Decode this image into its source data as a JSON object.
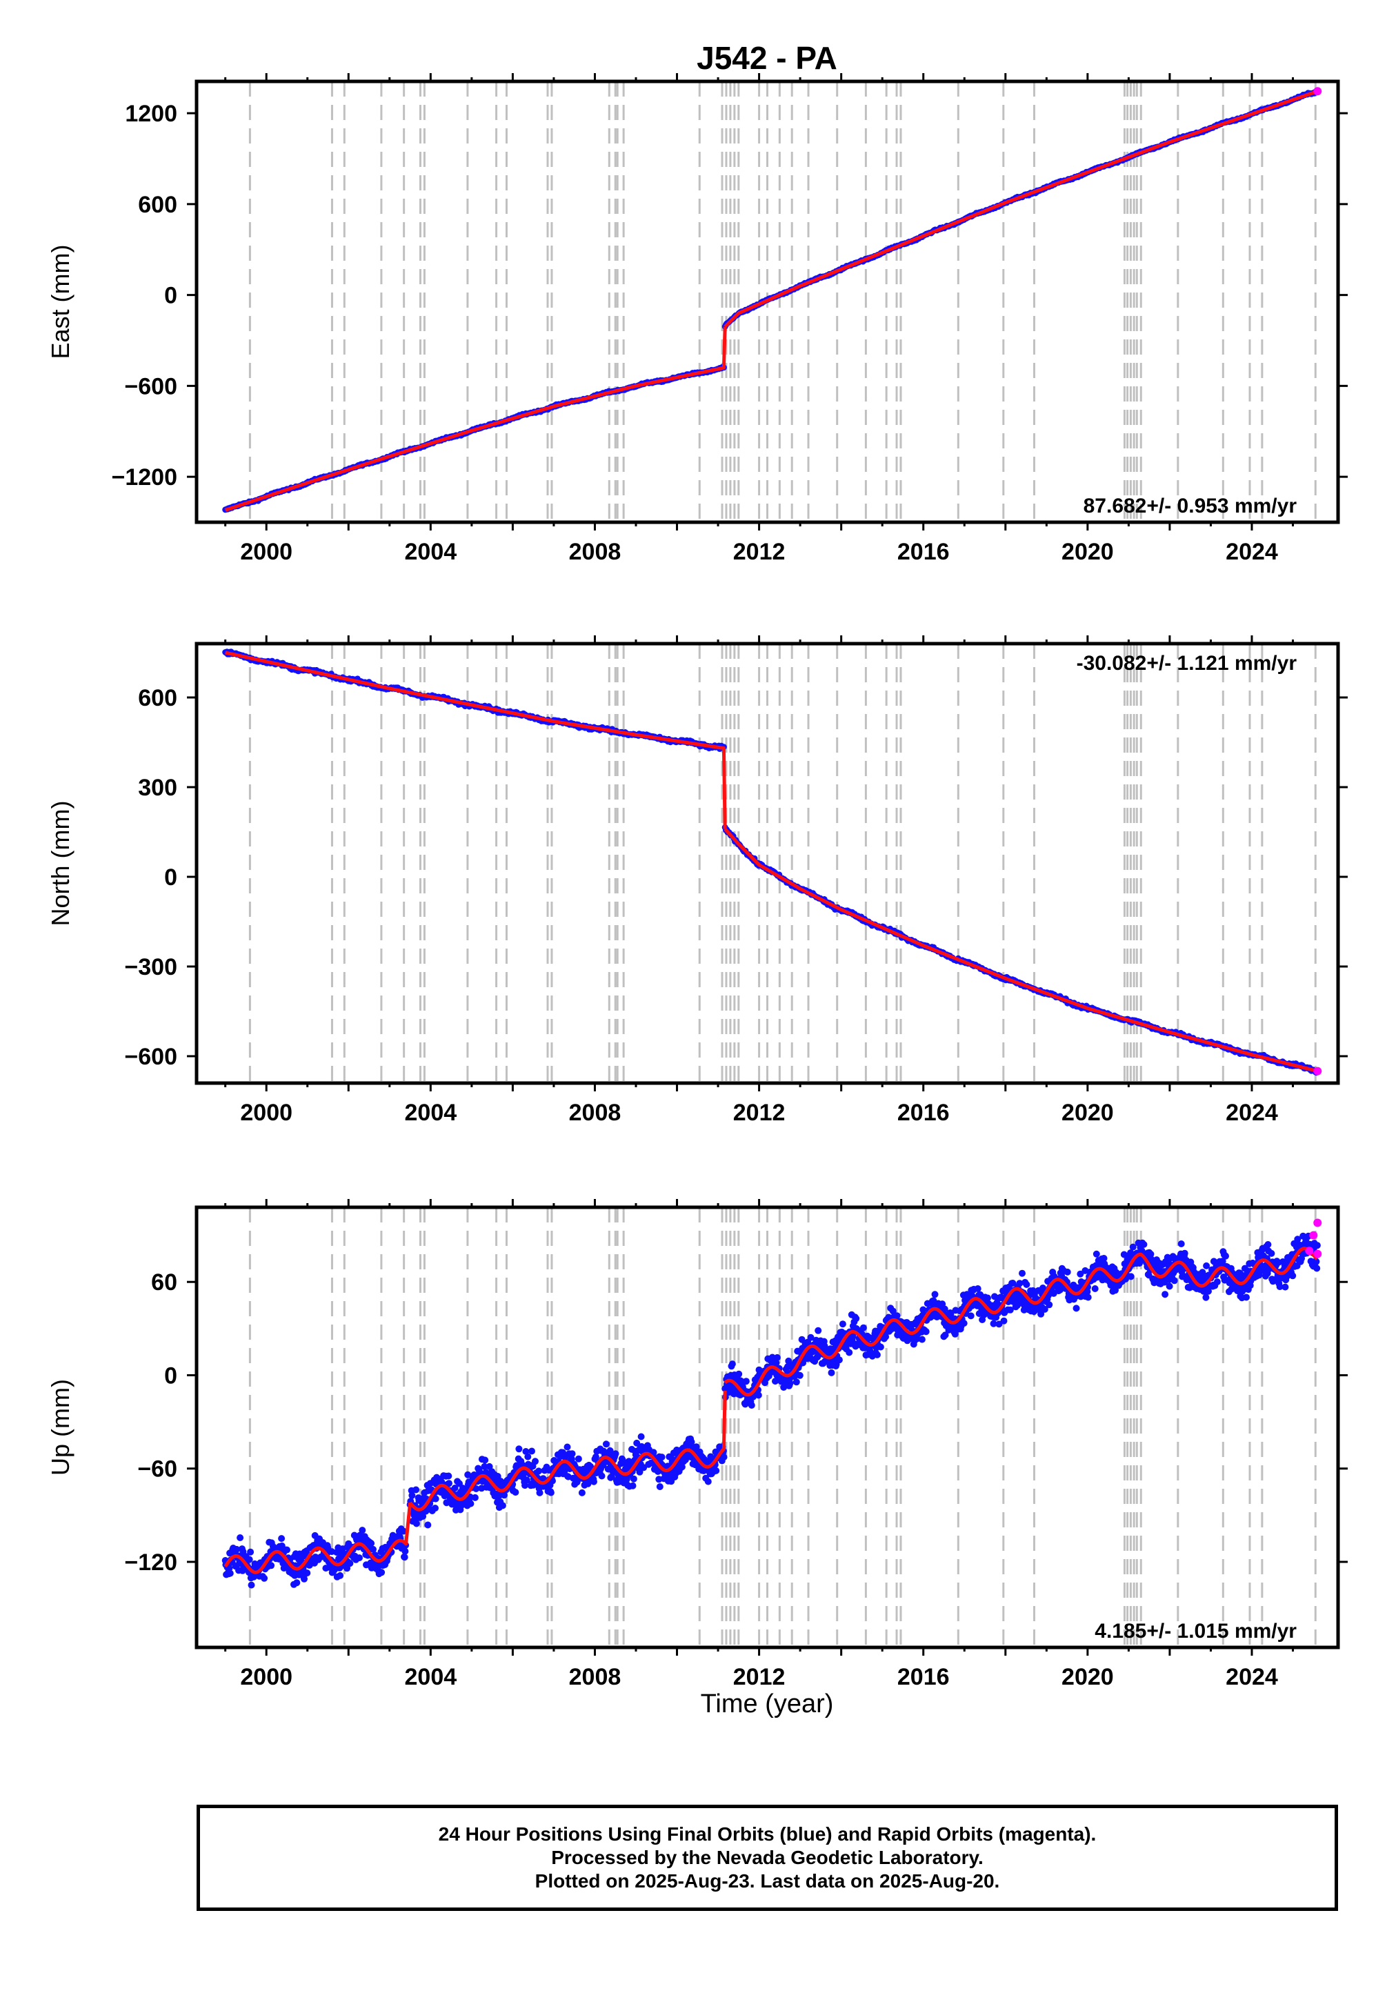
{
  "title": "J542 - PA",
  "x_axis_label": "Time (year)",
  "colors": {
    "final": "#1010ff",
    "rapid": "#ff00ff",
    "model": "#ff1010",
    "event": "#c0c0c0"
  },
  "footer": {
    "line1": "24 Hour Positions Using Final Orbits (blue) and Rapid Orbits (magenta).",
    "line2": "Processed by the Nevada Geodetic Laboratory.",
    "line3": "Plotted on 2025-Aug-23. Last data on 2025-Aug-20."
  },
  "chart_data": [
    {
      "type": "scatter",
      "title": "J542 - PA",
      "ylabel": "East (mm)",
      "xlim": [
        1998.3,
        2026.1
      ],
      "ylim": [
        -1500,
        1410
      ],
      "xticks": [
        "2000",
        "2004",
        "2008",
        "2012",
        "2016",
        "2020",
        "2024"
      ],
      "yticks": [
        "-1200",
        "-600",
        "0",
        "600",
        "1200"
      ],
      "rate_label": "87.682+/- 0.953 mm/yr",
      "rate_position": "bottom-right",
      "series": [
        {
          "x": [
            1999.0,
            2001.0,
            2003.0,
            2005.0,
            2007.0,
            2009.0,
            2011.15
          ],
          "y": [
            -1420,
            -1240,
            -1065,
            -895,
            -735,
            -600,
            -480
          ]
        },
        {
          "x": [
            2011.17,
            2011.5,
            2012.0,
            2013.0,
            2014.0,
            2016.0,
            2018.0,
            2020.0,
            2022.0,
            2024.0,
            2025.6
          ],
          "y": [
            -210,
            -120,
            -60,
            60,
            170,
            390,
            610,
            810,
            1010,
            1195,
            1345
          ]
        }
      ]
    },
    {
      "type": "scatter",
      "ylabel": "North (mm)",
      "xlim": [
        1998.3,
        2026.1
      ],
      "ylim": [
        -690,
        780
      ],
      "xticks": [
        "2000",
        "2004",
        "2008",
        "2012",
        "2016",
        "2020",
        "2024"
      ],
      "yticks": [
        "-600",
        "-300",
        "0",
        "300",
        "600"
      ],
      "rate_label": "-30.082+/- 1.121 mm/yr",
      "rate_position": "top-right",
      "series": [
        {
          "x": [
            1999.0,
            2001.0,
            2003.0,
            2005.0,
            2007.0,
            2009.0,
            2011.15
          ],
          "y": [
            750,
            690,
            630,
            575,
            520,
            475,
            430
          ]
        },
        {
          "x": [
            2011.17,
            2011.5,
            2012.0,
            2013.0,
            2014.0,
            2016.0,
            2018.0,
            2020.0,
            2022.0,
            2024.0,
            2025.6
          ],
          "y": [
            160,
            110,
            40,
            -40,
            -110,
            -230,
            -340,
            -440,
            -520,
            -595,
            -650
          ]
        }
      ]
    },
    {
      "type": "scatter",
      "ylabel": "Up (mm)",
      "xlim": [
        1998.3,
        2026.1
      ],
      "ylim": [
        -175,
        108
      ],
      "xticks": [
        "2000",
        "2004",
        "2008",
        "2012",
        "2016",
        "2020",
        "2024"
      ],
      "yticks": [
        "-120",
        "-60",
        "0",
        "60"
      ],
      "rate_label": "4.185+/- 1.015 mm/yr",
      "rate_position": "bottom-right",
      "series": [
        {
          "x": [
            1999.0,
            2000.0,
            2001.0,
            2002.0,
            2003.4
          ],
          "y": [
            -123,
            -120,
            -118,
            -115,
            -112
          ]
        },
        {
          "x": [
            2003.5,
            2005.0,
            2007.0,
            2009.0,
            2011.15
          ],
          "y": [
            -82,
            -72,
            -62,
            -57,
            -52
          ]
        },
        {
          "x": [
            2011.17,
            2012.0,
            2013.0,
            2014.0,
            2016.0,
            2018.0,
            2020.0,
            2021.3,
            2022.0,
            2023.0,
            2024.0,
            2025.6
          ],
          "y": [
            -10,
            -5,
            10,
            20,
            35,
            48,
            60,
            72,
            68,
            62,
            66,
            78
          ]
        }
      ],
      "rapid": {
        "x": [
          2025.4,
          2025.5,
          2025.6
        ],
        "y": [
          80,
          90,
          98
        ]
      }
    }
  ],
  "events": [
    1999.6,
    2001.6,
    2001.9,
    2002.8,
    2003.35,
    2003.75,
    2003.85,
    2004.9,
    2005.6,
    2005.85,
    2006.85,
    2006.95,
    2008.35,
    2008.5,
    2008.55,
    2008.7,
    2010.55,
    2011.1,
    2011.2,
    2011.3,
    2011.4,
    2011.5,
    2012.0,
    2012.2,
    2012.5,
    2012.8,
    2013.2,
    2013.9,
    2014.6,
    2015.1,
    2015.35,
    2015.45,
    2016.85,
    2017.95,
    2018.7,
    2020.9,
    2020.97,
    2021.05,
    2021.13,
    2021.2,
    2021.3,
    2022.2,
    2023.3,
    2023.95,
    2024.25,
    2025.55
  ]
}
